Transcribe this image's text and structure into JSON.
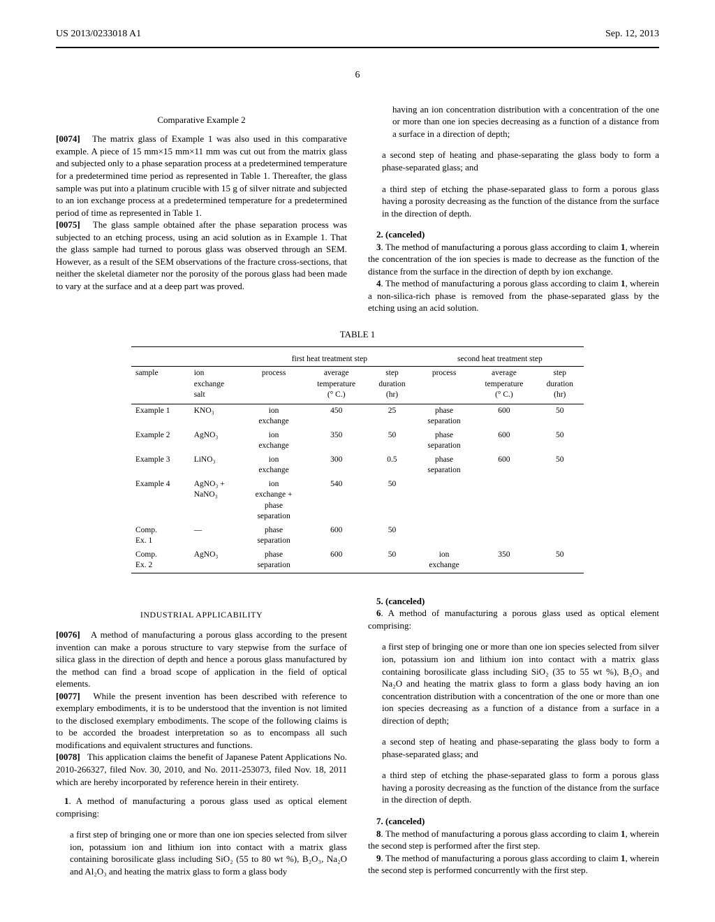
{
  "header": {
    "pub_number": "US 2013/0233018 A1",
    "date": "Sep. 12, 2013"
  },
  "page_number": "6",
  "left_col": {
    "ce2_heading": "Comparative Example 2",
    "p0074_num": "[0074]",
    "p0074": "The matrix glass of Example 1 was also used in this comparative example. A piece of 15 mm×15 mm×11 mm was cut out from the matrix glass and subjected only to a phase separation process at a predetermined temperature for a predetermined time period as represented in Table 1. Thereafter, the glass sample was put into a platinum crucible with 15 g of silver nitrate and subjected to an ion exchange process at a predetermined temperature for a predetermined period of time as represented in Table 1.",
    "p0075_num": "[0075]",
    "p0075": "The glass sample obtained after the phase separation process was subjected to an etching process, using an acid solution as in Example 1. That the glass sample had turned to porous glass was observed through an SEM. However, as a result of the SEM observations of the fracture cross-sections, that neither the skeletal diameter nor the porosity of the porous glass had been made to vary at the surface and at a deep part was proved."
  },
  "right_col": {
    "cont_text": "having an ion concentration distribution with a concentration of the one or more than one ion species decreasing as a function of a distance from a surface in a direction of depth;",
    "step_b": "a second step of heating and phase-separating the glass body to form a phase-separated glass; and",
    "step_c": "a third step of etching the phase-separated glass to form a porous glass having a porosity decreasing as the function of the distance from the surface in the direction of depth.",
    "claim2": "2. (canceled)",
    "claim3": "3. The method of manufacturing a porous glass according to claim 1, wherein the concentration of the ion species is made to decrease as the function of the distance from the surface in the direction of depth by ion exchange.",
    "claim4": "4. The method of manufacturing a porous glass according to claim 1, wherein a non-silica-rich phase is removed from the phase-separated glass by the etching using an acid solution."
  },
  "table": {
    "caption": "TABLE 1",
    "group_headers": [
      "first heat treatment step",
      "second heat treatment step"
    ],
    "col_headers": [
      "sample",
      "ion exchange salt",
      "process",
      "average temperature (° C.)",
      "step duration (hr)",
      "process",
      "average temperature (° C.)",
      "step duration (hr)"
    ],
    "rows": [
      {
        "sample": "Example 1",
        "salt": "KNO₃",
        "p1": "ion exchange",
        "t1": "450",
        "d1": "25",
        "p2": "phase separation",
        "t2": "600",
        "d2": "50"
      },
      {
        "sample": "Example 2",
        "salt": "AgNO₃",
        "p1": "ion exchange",
        "t1": "350",
        "d1": "50",
        "p2": "phase separation",
        "t2": "600",
        "d2": "50"
      },
      {
        "sample": "Example 3",
        "salt": "LiNO₃",
        "p1": "ion exchange",
        "t1": "300",
        "d1": "0.5",
        "p2": "phase separation",
        "t2": "600",
        "d2": "50"
      },
      {
        "sample": "Example 4",
        "salt": "AgNO₃ + NaNO₃",
        "p1": "ion exchange + phase separation",
        "t1": "540",
        "d1": "50",
        "p2": "",
        "t2": "",
        "d2": ""
      },
      {
        "sample": "Comp. Ex. 1",
        "salt": "—",
        "p1": "phase separation",
        "t1": "600",
        "d1": "50",
        "p2": "",
        "t2": "",
        "d2": ""
      },
      {
        "sample": "Comp. Ex. 2",
        "salt": "AgNO₃",
        "p1": "phase separation",
        "t1": "600",
        "d1": "50",
        "p2": "ion exchange",
        "t2": "350",
        "d2": "50"
      }
    ]
  },
  "lower_left": {
    "ia_heading": "INDUSTRIAL APPLICABILITY",
    "p0076_num": "[0076]",
    "p0076": "A method of manufacturing a porous glass according to the present invention can make a porous structure to vary stepwise from the surface of silica glass in the direction of depth and hence a porous glass manufactured by the method can find a broad scope of application in the field of optical elements.",
    "p0077_num": "[0077]",
    "p0077": "While the present invention has been described with reference to exemplary embodiments, it is to be understood that the invention is not limited to the disclosed exemplary embodiments. The scope of the following claims is to be accorded the broadest interpretation so as to encompass all such modifications and equivalent structures and functions.",
    "p0078_num": "[0078]",
    "p0078": "This application claims the benefit of Japanese Patent Applications No. 2010-266327, filed Nov. 30, 2010, and No. 2011-253073, filed Nov. 18, 2011 which are hereby incorporated by reference herein in their entirety.",
    "claim1_lead": "1. A method of manufacturing a porous glass used as optical element comprising:",
    "claim1_a": "a first step of bringing one or more than one ion species selected from silver ion, potassium ion and lithium ion into contact with a matrix glass containing borosilicate glass including SiO₂ (55 to 80 wt %), B₂O₃, Na₂O and Al₂O₃ and heating the matrix glass to form a glass body"
  },
  "lower_right": {
    "claim5": "5. (canceled)",
    "claim6_lead": "6. A method of manufacturing a porous glass used as optical element comprising:",
    "claim6_a": "a first step of bringing one or more than one ion species selected from silver ion, potassium ion and lithium ion into contact with a matrix glass containing borosilicate glass including SiO₂ (35 to 55 wt %), B₂O₃ and Na₂O and heating the matrix glass to form a glass body having an ion concentration distribution with a concentration of the one or more than one ion species decreasing as a function of a distance from a surface in a direction of depth;",
    "claim6_b": "a second step of heating and phase-separating the glass body to form a phase-separated glass; and",
    "claim6_c": "a third step of etching the phase-separated glass to form a porous glass having a porosity decreasing as the function of the distance from the surface in the direction of depth.",
    "claim7": "7. (canceled)",
    "claim8": "8. The method of manufacturing a porous glass according to claim 1, wherein the second step is performed after the first step.",
    "claim9": "9. The method of manufacturing a porous glass according to claim 1, wherein the second step is performed concurrently with the first step."
  }
}
